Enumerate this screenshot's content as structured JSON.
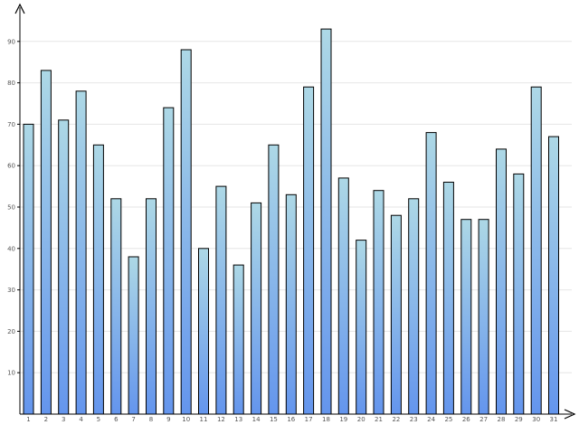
{
  "chart_data": {
    "type": "bar",
    "categories": [
      "1",
      "2",
      "3",
      "4",
      "5",
      "6",
      "7",
      "8",
      "9",
      "10",
      "11",
      "12",
      "13",
      "14",
      "15",
      "16",
      "17",
      "18",
      "19",
      "20",
      "21",
      "22",
      "23",
      "24",
      "25",
      "26",
      "27",
      "28",
      "29",
      "30",
      "31"
    ],
    "values": [
      70,
      83,
      71,
      78,
      65,
      52,
      38,
      52,
      74,
      88,
      40,
      55,
      36,
      51,
      65,
      53,
      79,
      93,
      57,
      42,
      54,
      48,
      52,
      68,
      56,
      47,
      47,
      64,
      58,
      79,
      67
    ],
    "yticks": [
      "10",
      "20",
      "30",
      "40",
      "50",
      "60",
      "70",
      "80",
      "90"
    ],
    "ylim": [
      0,
      100
    ],
    "grid": true,
    "legend": "none",
    "title": "",
    "xlabel": "",
    "ylabel": "",
    "colors": {
      "bar_top": "#add8e6",
      "bar_bottom": "#6495ed",
      "bar_stroke": "#000000",
      "grid": "#e6e6e6",
      "axis": "#000000"
    }
  }
}
